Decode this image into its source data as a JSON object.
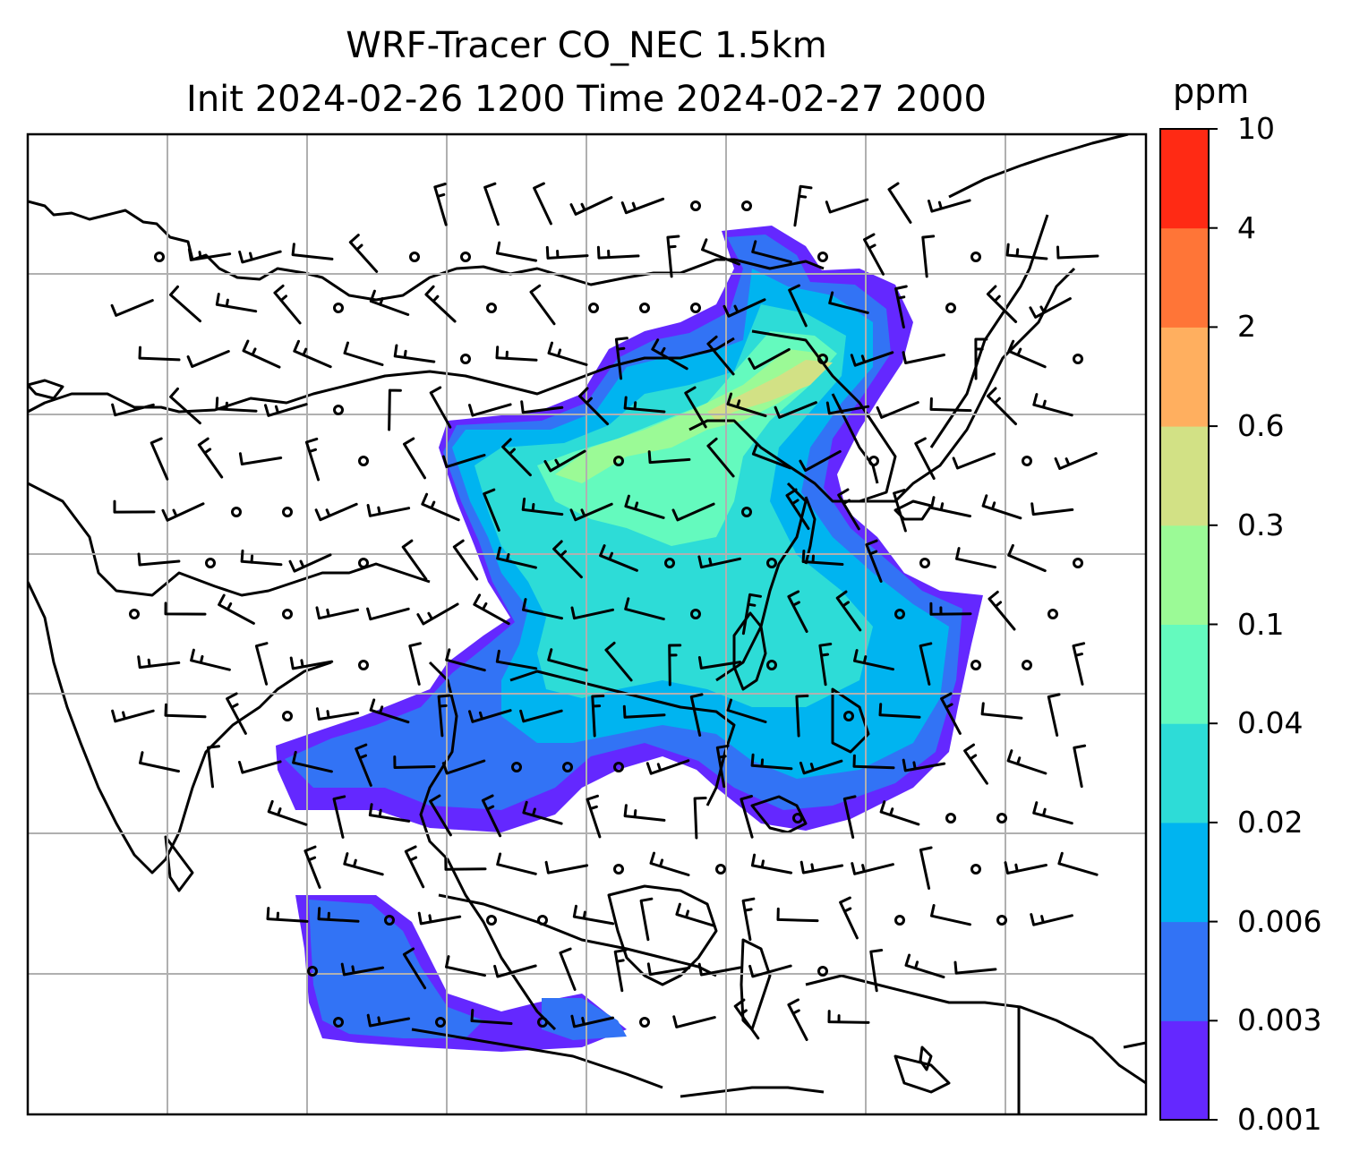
{
  "title": {
    "line1": "WRF-Tracer CO_NEC 1.5km",
    "line2": "Init 2024-02-26 1200 Time 2024-02-27 2000"
  },
  "colorbar": {
    "unit": "ppm",
    "levels": [
      "0.001",
      "0.003",
      "0.006",
      "0.02",
      "0.04",
      "0.1",
      "0.3",
      "0.6",
      "2",
      "4",
      "10"
    ],
    "colors": [
      "#6428ff",
      "#3273f5",
      "#00b4f0",
      "#2ddcd7",
      "#64fabe",
      "#9bfa96",
      "#d2e185",
      "#ffaf5f",
      "#ff7537",
      "#ff2a14"
    ]
  },
  "map": {
    "field": "CO_NEC tracer concentration",
    "wind": "barbs"
  }
}
